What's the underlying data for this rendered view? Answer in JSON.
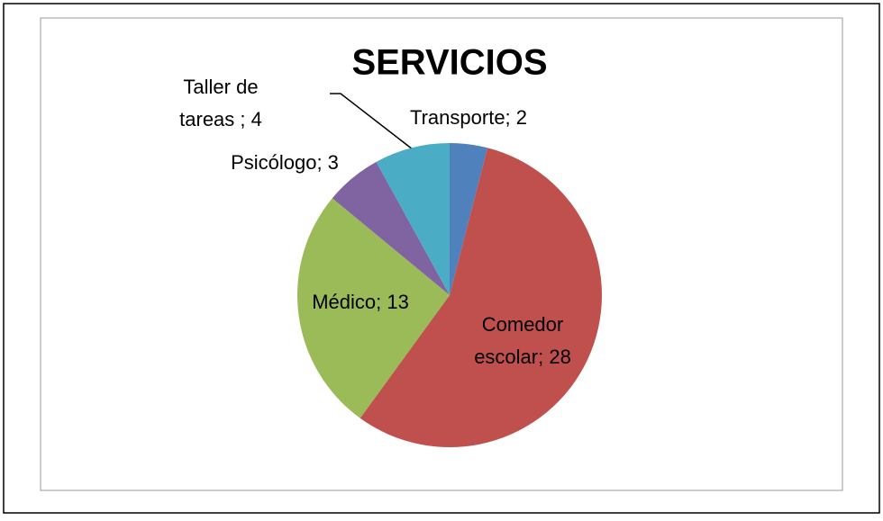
{
  "chart_data": {
    "type": "pie",
    "title": "SERVICIOS",
    "values": [
      2,
      28,
      13,
      3,
      4
    ],
    "value_labels": [
      [
        "Transporte; 2"
      ],
      [
        "Comedor",
        "escolar; 28"
      ],
      [
        "Médico; 13"
      ],
      [
        "Psicólogo; 3"
      ],
      [
        "Taller de",
        "tareas ; 4"
      ]
    ],
    "colors": [
      "#4f81bd",
      "#c0504d",
      "#9bbb59",
      "#8064a2",
      "#4bacc6"
    ]
  }
}
